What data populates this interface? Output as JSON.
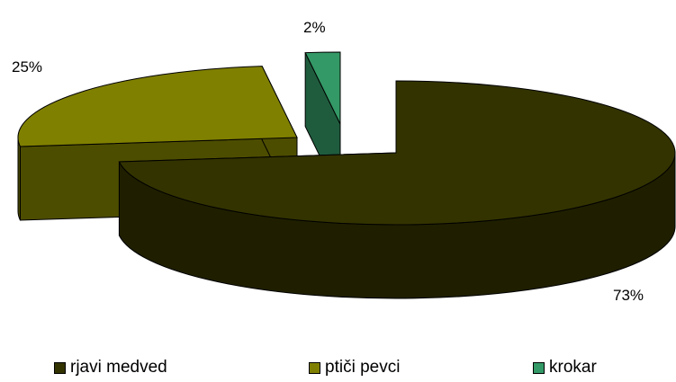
{
  "chart_data": {
    "type": "pie",
    "variant": "3d-exploded",
    "categories": [
      "rjavi medved",
      "ptiči pevci",
      "krokar"
    ],
    "values": [
      73,
      25,
      2
    ],
    "labels": [
      "73%",
      "25%",
      "2%"
    ],
    "colors": {
      "top": [
        "#333300",
        "#808000",
        "#339966"
      ],
      "side": [
        "#1f1f00",
        "#4d4d00",
        "#1f5c3d"
      ]
    },
    "legend_position": "bottom"
  }
}
